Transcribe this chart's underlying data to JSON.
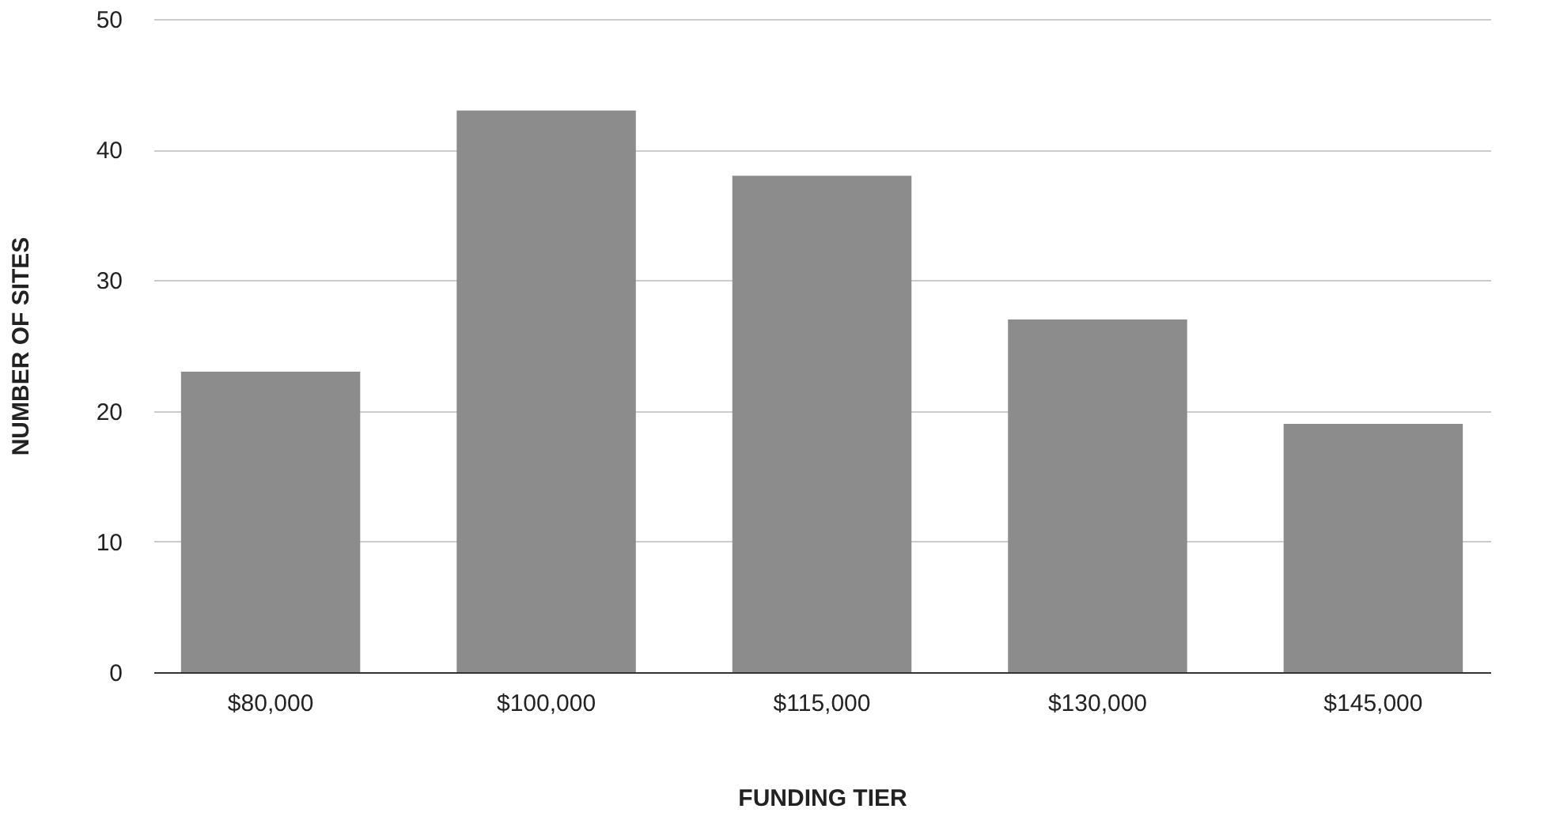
{
  "chart_data": {
    "type": "bar",
    "xlabel": "FUNDING TIER",
    "ylabel": "NUMBER OF SITES",
    "categories": [
      "$80,000",
      "$100,000",
      "$115,000",
      "$130,000",
      "$145,000"
    ],
    "values": [
      23,
      43,
      38,
      27,
      19
    ],
    "color": "#8c8c8c",
    "ylim": [
      0,
      50
    ],
    "yticks": [
      0,
      10,
      20,
      30,
      40,
      50
    ],
    "grid": "y"
  }
}
